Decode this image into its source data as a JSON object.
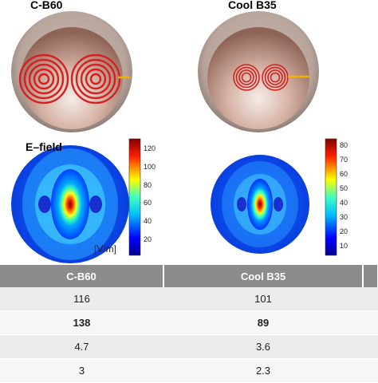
{
  "panels": {
    "left_title": "C-B60",
    "right_title": "Cool B35",
    "efield_label": "E–field",
    "unit_label": "[V/m]"
  },
  "colorbars": {
    "left_ticks": [
      "120",
      "100",
      "80",
      "60",
      "40",
      "20"
    ],
    "right_ticks": [
      "80",
      "70",
      "60",
      "50",
      "40",
      "30",
      "20",
      "10"
    ]
  },
  "table": {
    "headers": [
      "C-B60",
      "Cool B35",
      ""
    ],
    "rows": [
      {
        "values": [
          "116",
          "101",
          ""
        ],
        "bold": false
      },
      {
        "values": [
          "138",
          "89",
          ""
        ],
        "bold": true
      },
      {
        "values": [
          "4.7",
          "3.6",
          ""
        ],
        "bold": false
      },
      {
        "values": [
          "3",
          "2.3",
          ""
        ],
        "bold": false
      }
    ]
  },
  "colors": {
    "header_bg": "#8c8c8c",
    "coil_color": "#d42020",
    "connector_color": "#f0b000",
    "shell_color": "#b9a79f"
  }
}
